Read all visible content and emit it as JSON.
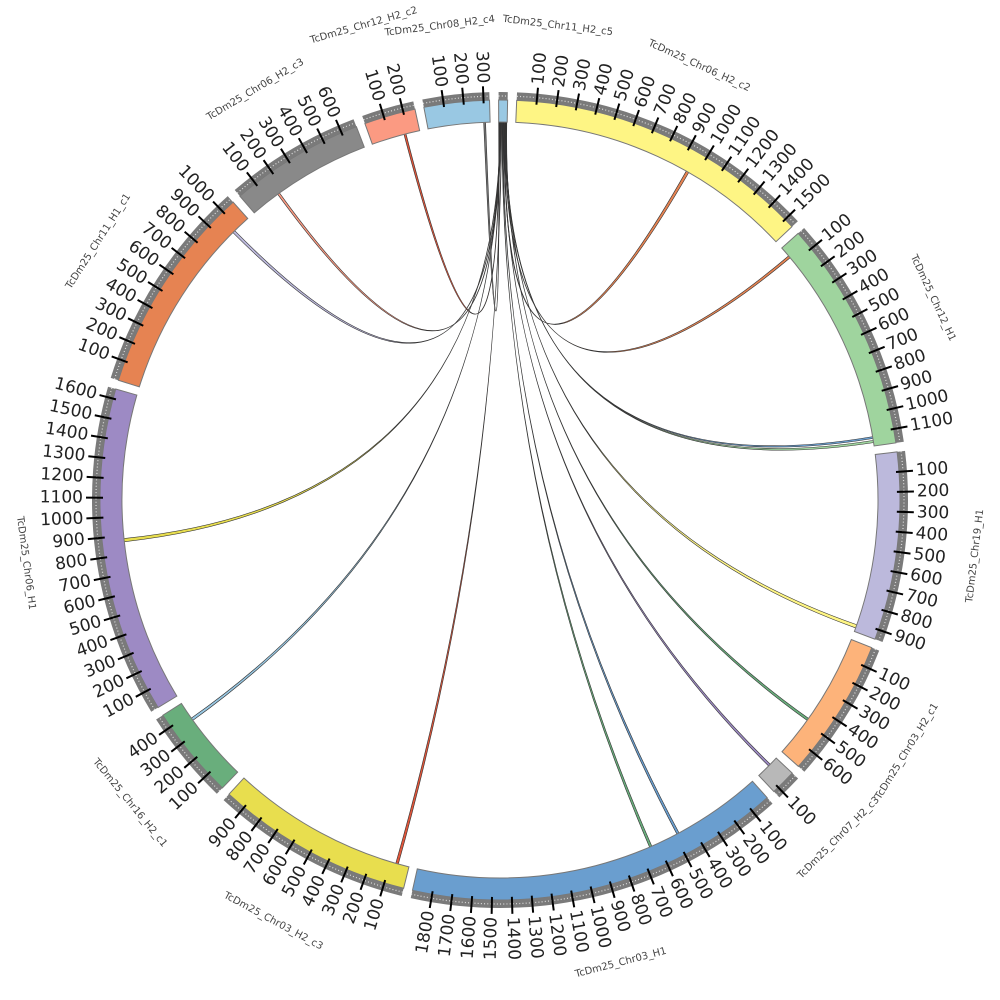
{
  "chart_data": {
    "type": "circos",
    "title": "",
    "tick_interval": 100,
    "minor_tick_interval": 10,
    "chromosomes": [
      {
        "name": "TcDm25_Chr11_H2_c5",
        "length": 45,
        "color": "#99c8e3"
      },
      {
        "name": "TcDm25_Chr06_H2_c2",
        "length": 1550,
        "color": "#fef584"
      },
      {
        "name": "TcDm25_Chr12_H1",
        "length": 1170,
        "color": "#9fd49e"
      },
      {
        "name": "TcDm25_Chr19_H1",
        "length": 950,
        "color": "#bcb9dc"
      },
      {
        "name": "TcDm25_Chr03_H2_c1",
        "length": 700,
        "color": "#fdb37a"
      },
      {
        "name": "TcDm25_Chr07_H2_c3",
        "length": 130,
        "color": "#b8b8b8"
      },
      {
        "name": "TcDm25_Chr03_H1",
        "length": 1900,
        "color": "#6a9ecf"
      },
      {
        "name": "TcDm25_Chr03_H2_c3",
        "length": 1000,
        "color": "#e8de4e"
      },
      {
        "name": "TcDm25_Chr16_H2_c1",
        "length": 470,
        "color": "#69ae7c"
      },
      {
        "name": "TcDm25_Chr06_H1",
        "length": 1650,
        "color": "#9d8ac4"
      },
      {
        "name": "TcDm25_Chr11_H1_c1",
        "length": 1070,
        "color": "#e68352"
      },
      {
        "name": "TcDm25_Chr06_H2_c3",
        "length": 680,
        "color": "#898989"
      },
      {
        "name": "TcDm25_Chr12_H2_c2",
        "length": 260,
        "color": "#fb9a82"
      },
      {
        "name": "TcDm25_Chr08_H2_c4",
        "length": 330,
        "color": "#99c8e3"
      }
    ],
    "links": [
      {
        "source": {
          "chr": 0,
          "start": 30,
          "end": 33
        },
        "target": {
          "chr": 1,
          "start": 945,
          "end": 960
        },
        "color": "#e68352"
      },
      {
        "source": {
          "chr": 0,
          "start": 33,
          "end": 35
        },
        "target": {
          "chr": 2,
          "start": 55,
          "end": 68
        },
        "color": "#e68352"
      },
      {
        "source": {
          "chr": 0,
          "start": 35,
          "end": 37
        },
        "target": {
          "chr": 2,
          "start": 1120,
          "end": 1130
        },
        "color": "#6a9ecf"
      },
      {
        "source": {
          "chr": 0,
          "start": 37,
          "end": 39
        },
        "target": {
          "chr": 2,
          "start": 1140,
          "end": 1152
        },
        "color": "#9fd49e"
      },
      {
        "source": {
          "chr": 0,
          "start": 39,
          "end": 41
        },
        "target": {
          "chr": 3,
          "start": 912,
          "end": 930
        },
        "color": "#fef584"
      },
      {
        "source": {
          "chr": 0,
          "start": 41,
          "end": 43
        },
        "target": {
          "chr": 4,
          "start": 475,
          "end": 488
        },
        "color": "#69ae7c"
      },
      {
        "source": {
          "chr": 0,
          "start": 26,
          "end": 28
        },
        "target": {
          "chr": 5,
          "start": 45,
          "end": 58
        },
        "color": "#9d8ac4"
      },
      {
        "source": {
          "chr": 0,
          "start": 22,
          "end": 24
        },
        "target": {
          "chr": 6,
          "start": 475,
          "end": 488
        },
        "color": "#6a9ecf"
      },
      {
        "source": {
          "chr": 0,
          "start": 18,
          "end": 20
        },
        "target": {
          "chr": 6,
          "start": 635,
          "end": 648
        },
        "color": "#69ae7c"
      },
      {
        "source": {
          "chr": 0,
          "start": 14,
          "end": 16
        },
        "target": {
          "chr": 7,
          "start": 58,
          "end": 72
        },
        "color": "#e0553a"
      },
      {
        "source": {
          "chr": 0,
          "start": 11,
          "end": 13
        },
        "target": {
          "chr": 8,
          "start": 362,
          "end": 376
        },
        "color": "#99c8e3"
      },
      {
        "source": {
          "chr": 0,
          "start": 8,
          "end": 10
        },
        "target": {
          "chr": 9,
          "start": 868,
          "end": 885
        },
        "color": "#e8de4e"
      },
      {
        "source": {
          "chr": 0,
          "start": 6,
          "end": 8
        },
        "target": {
          "chr": 10,
          "start": 962,
          "end": 976
        },
        "color": "#bcb9dc"
      },
      {
        "source": {
          "chr": 0,
          "start": 4,
          "end": 6
        },
        "target": {
          "chr": 11,
          "start": 158,
          "end": 170
        },
        "color": "#fb9a82"
      },
      {
        "source": {
          "chr": 0,
          "start": 2,
          "end": 4
        },
        "target": {
          "chr": 12,
          "start": 175,
          "end": 186
        },
        "color": "#e0553a"
      },
      {
        "source": {
          "chr": 0,
          "start": 0,
          "end": 2
        },
        "target": {
          "chr": 13,
          "start": 296,
          "end": 306
        },
        "color": "#777777"
      }
    ]
  }
}
